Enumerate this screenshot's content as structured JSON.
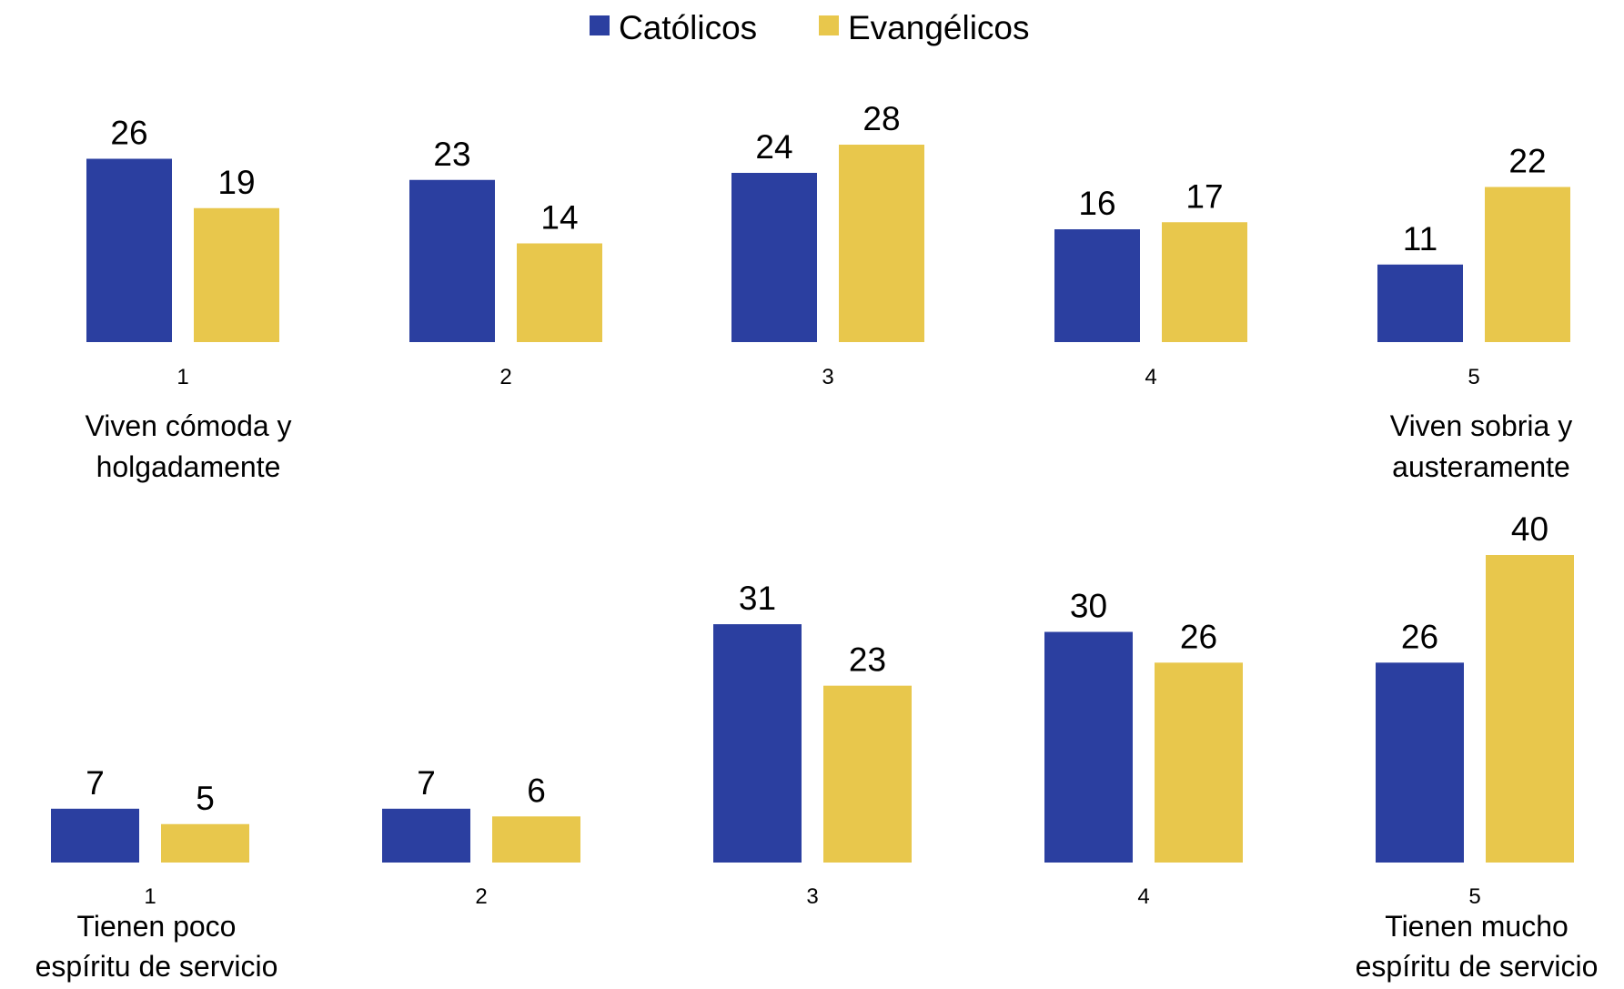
{
  "legend": [
    {
      "label": "Católicos",
      "color": "#2b3fa0"
    },
    {
      "label": "Evangélicos",
      "color": "#e8c74c"
    }
  ],
  "chart_data": [
    {
      "type": "bar",
      "categories": [
        "1",
        "2",
        "3",
        "4",
        "5"
      ],
      "series": [
        {
          "name": "Católicos",
          "values": [
            26,
            23,
            24,
            16,
            11
          ]
        },
        {
          "name": "Evangélicos",
          "values": [
            19,
            14,
            28,
            17,
            22
          ]
        }
      ],
      "anchor_low": [
        "Viven cómoda y",
        "holgadamente"
      ],
      "anchor_high": [
        "Viven sobria y",
        "austeramente"
      ],
      "legend_position": "top-center"
    },
    {
      "type": "bar",
      "categories": [
        "1",
        "2",
        "3",
        "4",
        "5"
      ],
      "series": [
        {
          "name": "Católicos",
          "values": [
            7,
            7,
            31,
            30,
            26
          ]
        },
        {
          "name": "Evangélicos",
          "values": [
            5,
            6,
            23,
            26,
            40
          ]
        }
      ],
      "anchor_low": [
        "Tienen poco",
        "espíritu de servicio"
      ],
      "anchor_high": [
        "Tienen mucho",
        "espíritu de servicio"
      ],
      "legend_position": "top-center"
    }
  ]
}
